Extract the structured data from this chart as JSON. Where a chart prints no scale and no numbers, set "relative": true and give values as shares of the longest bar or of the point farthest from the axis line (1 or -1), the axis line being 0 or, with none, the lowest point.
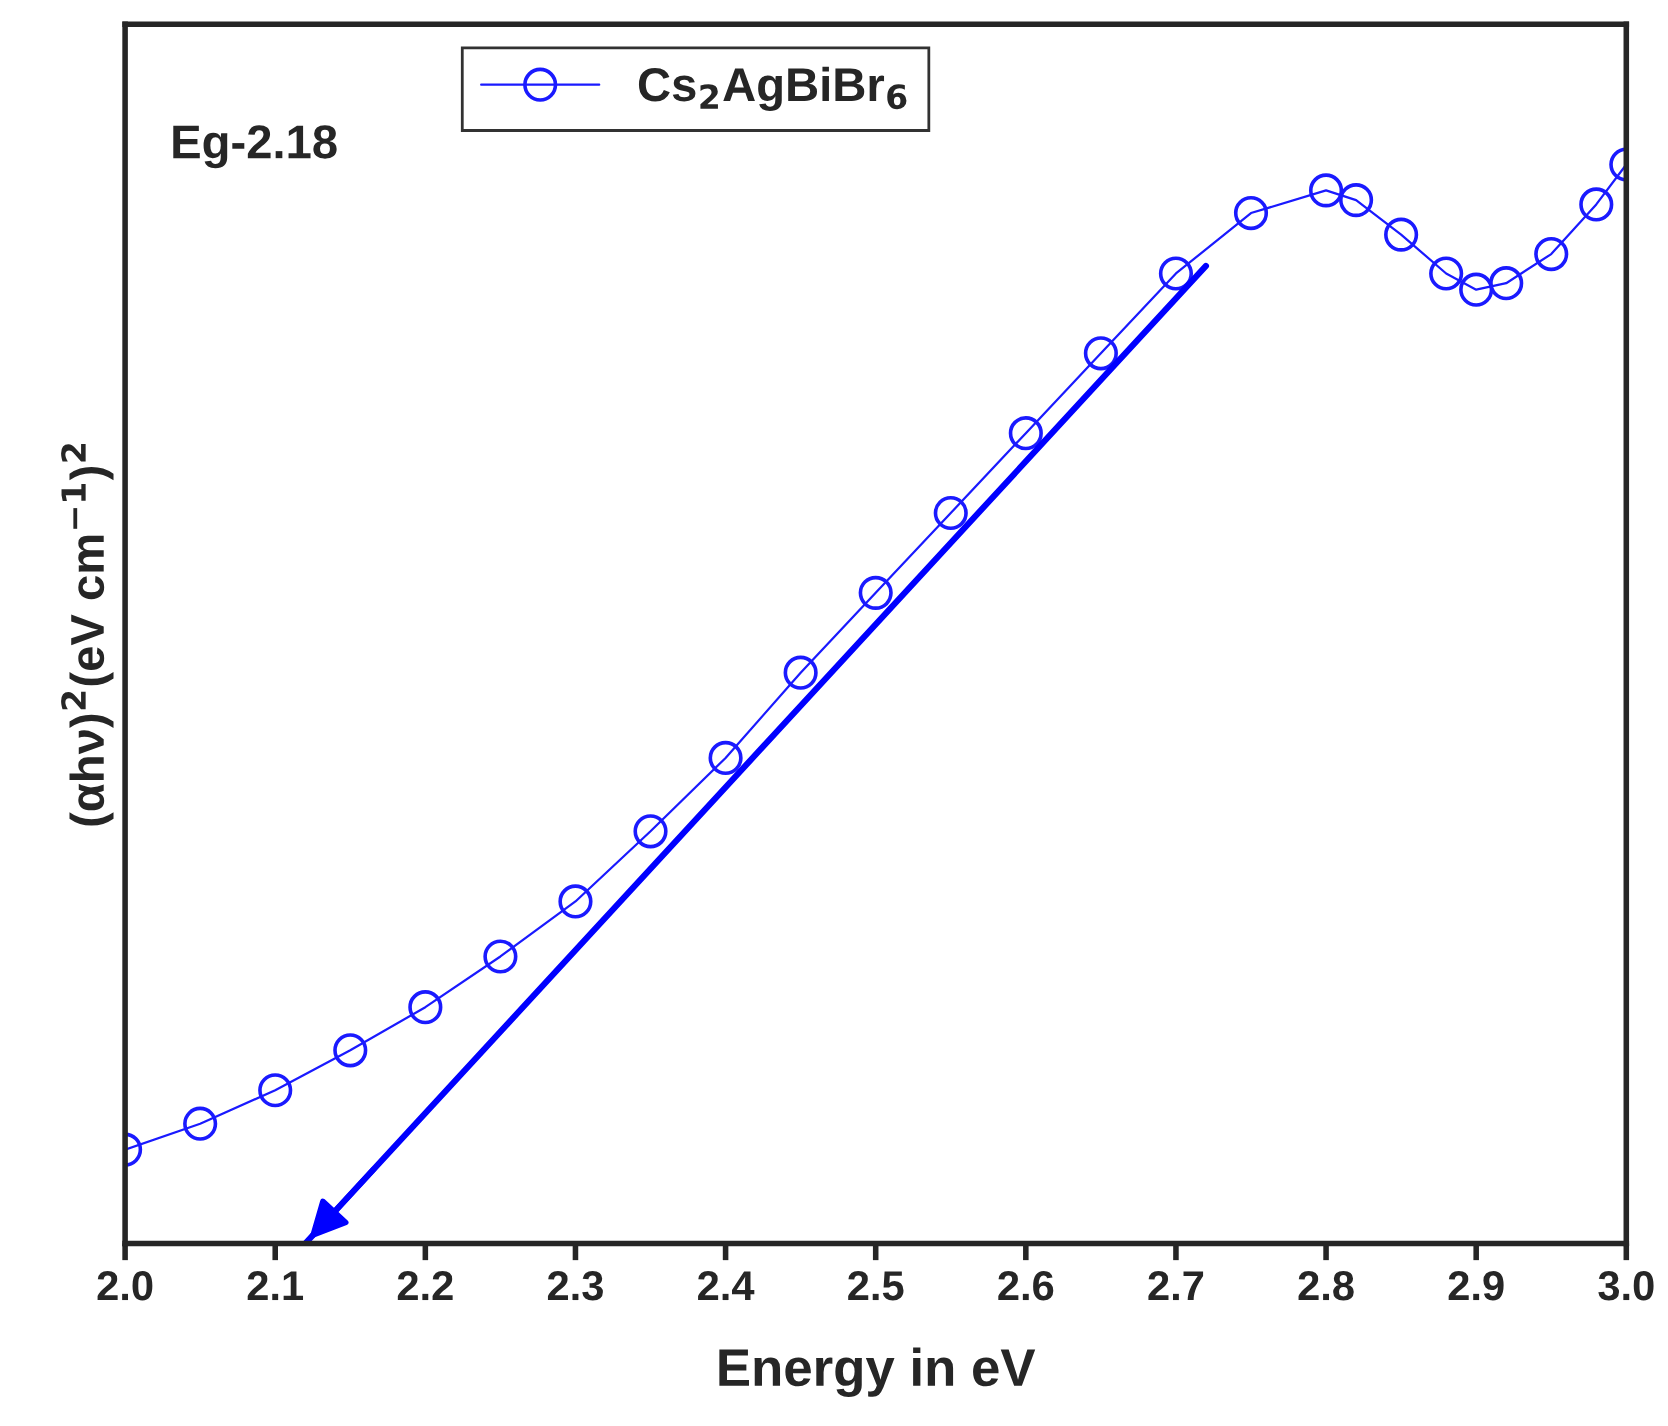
{
  "chart_data": {
    "type": "line",
    "relative": true,
    "xlabel": "Energy in eV",
    "ylabel": "(αhν)$^{2}$(eV cm$^{−1}$)$^{2}$",
    "xlim": [
      2.0,
      3.0
    ],
    "xticks": [
      {
        "value": 2.0,
        "label": "2.0"
      },
      {
        "value": 2.1,
        "label": "2.1"
      },
      {
        "value": 2.2,
        "label": "2.2"
      },
      {
        "value": 2.3,
        "label": "2.3"
      },
      {
        "value": 2.4,
        "label": "2.4"
      },
      {
        "value": 2.5,
        "label": "2.5"
      },
      {
        "value": 2.6,
        "label": "2.6"
      },
      {
        "value": 2.7,
        "label": "2.7"
      },
      {
        "value": 2.8,
        "label": "2.8"
      },
      {
        "value": 2.9,
        "label": "2.9"
      },
      {
        "value": 3.0,
        "label": "3.0"
      }
    ],
    "tick_labels": "x",
    "grid": false,
    "legend": "top",
    "annotations": [
      "Eg-2.18"
    ],
    "series": [
      {
        "name": "Cs$_{2}$AgBiBr$_{6}$",
        "marker": "circle",
        "color": "#1a1aff",
        "x": [
          2.0,
          2.05,
          2.1,
          2.15,
          2.2,
          2.25,
          2.3,
          2.35,
          2.4,
          2.45,
          2.5,
          2.55,
          2.6,
          2.65,
          2.7,
          2.75,
          2.8,
          2.82,
          2.85,
          2.88,
          2.9,
          2.92,
          2.95,
          2.98,
          3.0
        ],
        "values": [
          0.087,
          0.111,
          0.142,
          0.179,
          0.219,
          0.266,
          0.317,
          0.382,
          0.45,
          0.529,
          0.603,
          0.677,
          0.751,
          0.825,
          0.899,
          0.955,
          0.976,
          0.967,
          0.935,
          0.899,
          0.884,
          0.89,
          0.917,
          0.963,
          1.0
        ]
      },
      {
        "type": "line",
        "marker": "none",
        "color": "#0000ff",
        "x": [
          2.72,
          2.12
        ],
        "values": [
          0.906,
          0.0
        ]
      }
    ]
  }
}
